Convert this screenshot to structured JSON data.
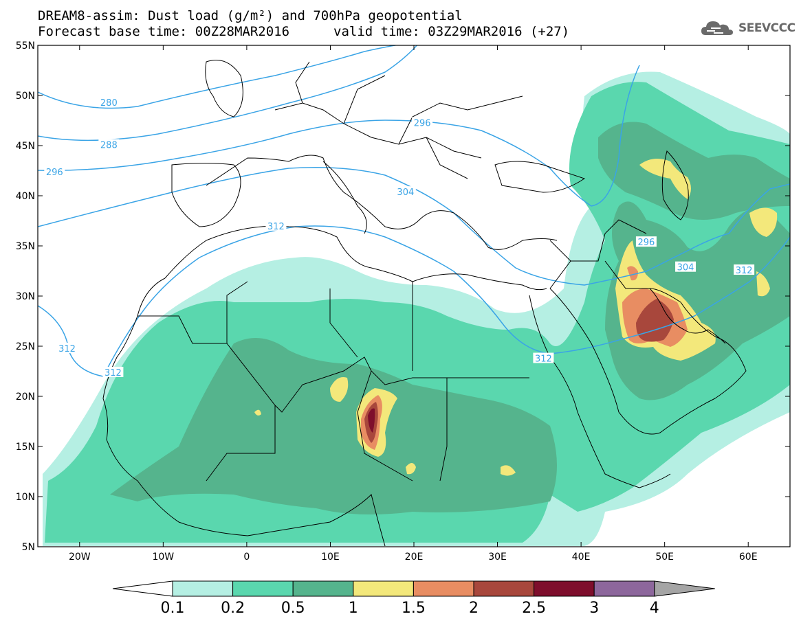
{
  "title_line1": "DREAM8-assim: Dust load (g/m²) and 700hPa geopotential",
  "title_base": "Forecast base time: 00Z28MAR2016",
  "title_valid": "valid time: 03Z29MAR2016 (+27)",
  "logo": {
    "text": "SEEVCCC",
    "icon": "cloud-icon"
  },
  "map": {
    "lon_range": [
      -25,
      65
    ],
    "lat_range": [
      5,
      55
    ],
    "lon_ticks": [
      {
        "lon": -20,
        "label": "20W"
      },
      {
        "lon": -10,
        "label": "10W"
      },
      {
        "lon": 0,
        "label": "0"
      },
      {
        "lon": 10,
        "label": "10E"
      },
      {
        "lon": 20,
        "label": "20E"
      },
      {
        "lon": 30,
        "label": "30E"
      },
      {
        "lon": 40,
        "label": "40E"
      },
      {
        "lon": 50,
        "label": "50E"
      },
      {
        "lon": 60,
        "label": "60E"
      }
    ],
    "lat_ticks": [
      {
        "lat": 55,
        "label": "55N"
      },
      {
        "lat": 50,
        "label": "50N"
      },
      {
        "lat": 45,
        "label": "45N"
      },
      {
        "lat": 40,
        "label": "40N"
      },
      {
        "lat": 35,
        "label": "35N"
      },
      {
        "lat": 30,
        "label": "30N"
      },
      {
        "lat": 25,
        "label": "25N"
      },
      {
        "lat": 20,
        "label": "20N"
      },
      {
        "lat": 15,
        "label": "15N"
      },
      {
        "lat": 10,
        "label": "10N"
      },
      {
        "lat": 5,
        "label": "5N"
      }
    ],
    "contour_labels": [
      {
        "text": "280",
        "lon": -16.5,
        "lat": 49.3
      },
      {
        "text": "288",
        "lon": -16.5,
        "lat": 45.1
      },
      {
        "text": "296",
        "lon": -23,
        "lat": 42.4
      },
      {
        "text": "296",
        "lon": 21,
        "lat": 47.3
      },
      {
        "text": "304",
        "lon": 19,
        "lat": 40.4
      },
      {
        "text": "312",
        "lon": 3.5,
        "lat": 37.0
      },
      {
        "text": "312",
        "lon": -21.5,
        "lat": 24.8
      },
      {
        "text": "312",
        "lon": -16,
        "lat": 22.4
      },
      {
        "text": "312",
        "lon": 35.5,
        "lat": 23.8
      },
      {
        "text": "296",
        "lon": 47.8,
        "lat": 35.4
      },
      {
        "text": "304",
        "lon": 52.5,
        "lat": 32.9
      },
      {
        "text": "312",
        "lon": 59.5,
        "lat": 32.6
      }
    ],
    "dust_colors": {
      "c1": "#b5efe3",
      "c2": "#5ad7ae",
      "c3": "#55b48d",
      "c4": "#f3e87b",
      "c5": "#e88d62",
      "c6": "#a8473c",
      "c7": "#7e0e2c",
      "c8": "#8d679c",
      "c9": "#a5a5a5"
    },
    "contour_color": "#3aa4e6"
  },
  "colorbar": {
    "colors": [
      "#b5efe3",
      "#5ad7ae",
      "#55b48d",
      "#f3e87b",
      "#e88d62",
      "#a8473c",
      "#7e0e2c",
      "#8d679c"
    ],
    "below_color": "#ffffff",
    "above_color": "#a5a5a5",
    "labels": [
      "0.1",
      "0.2",
      "0.5",
      "1",
      "1.5",
      "2",
      "2.5",
      "3",
      "4"
    ]
  }
}
